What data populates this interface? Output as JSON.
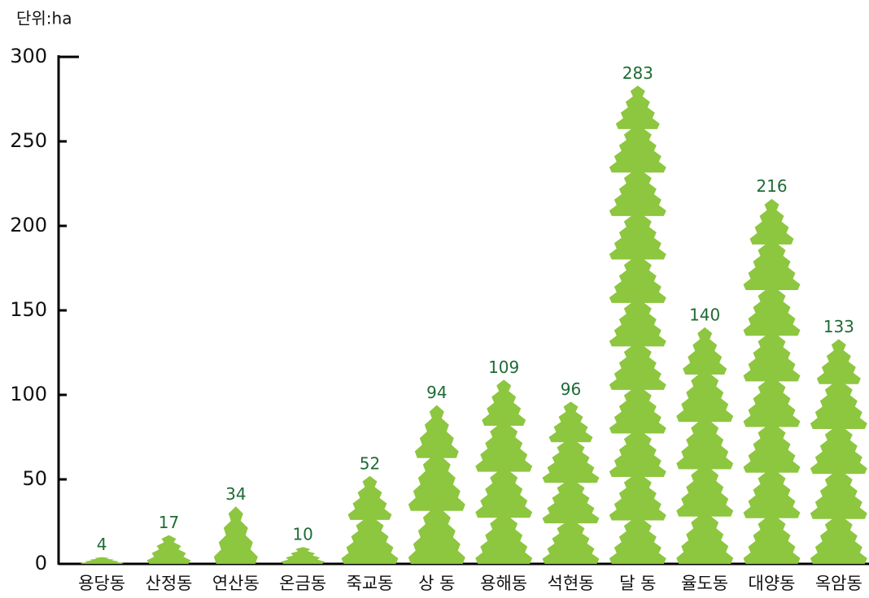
{
  "chart_data": {
    "type": "bar",
    "unit_label": "단위:ha",
    "categories": [
      "용당동",
      "산정동",
      "연산동",
      "온금동",
      "죽교동",
      "상 동",
      "용해동",
      "석현동",
      "달 동",
      "율도동",
      "대양동",
      "옥암동"
    ],
    "values": [
      4,
      17,
      34,
      10,
      52,
      94,
      109,
      96,
      283,
      140,
      216,
      133
    ],
    "color": "#8dc63f",
    "label_color": "#1e6b35",
    "ylim": [
      0,
      300
    ],
    "yticks": [
      0,
      50,
      100,
      150,
      200,
      250,
      300
    ],
    "grid": false
  }
}
